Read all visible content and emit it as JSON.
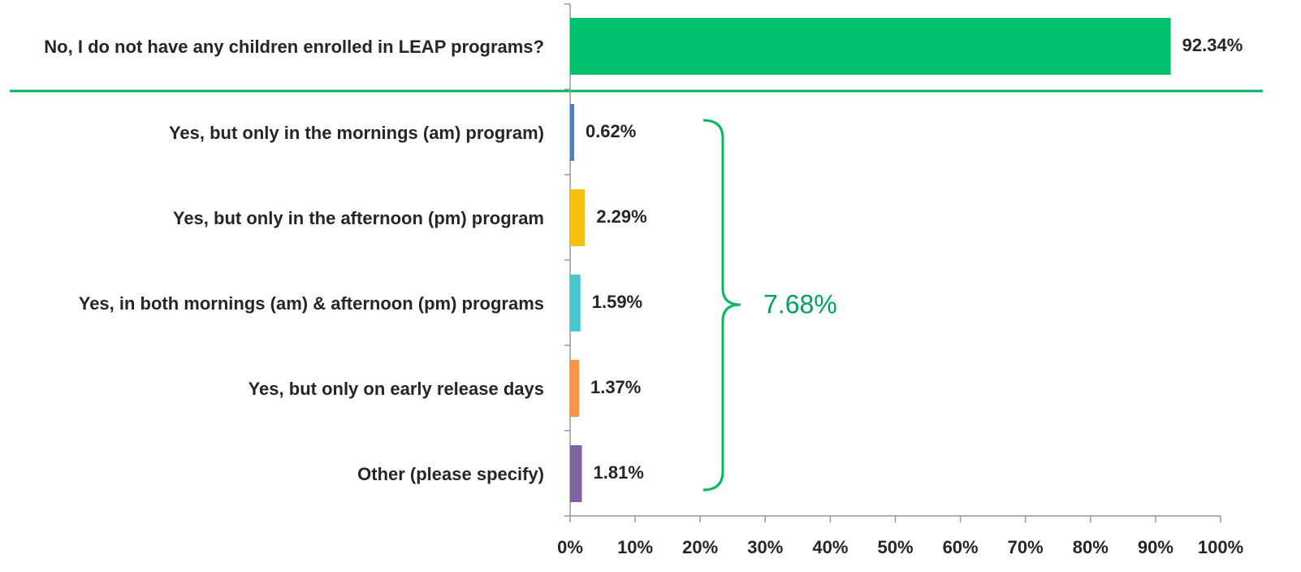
{
  "chart_data": {
    "type": "bar",
    "orientation": "horizontal",
    "categories": [
      "No, I do not have any children enrolled in LEAP programs?",
      "Yes, but only in the mornings (am) program)",
      "Yes, but only in the afternoon (pm) program",
      "Yes, in both mornings (am) & afternoon (pm) programs",
      "Yes, but only on early release days",
      "Other (please specify)"
    ],
    "values": [
      92.34,
      0.62,
      2.29,
      1.59,
      1.37,
      1.81
    ],
    "value_labels": [
      "92.34%",
      "0.62%",
      "2.29%",
      "1.59%",
      "1.37%",
      "1.81%"
    ],
    "colors": [
      "#00c16e",
      "#4f81bd",
      "#f5c010",
      "#4bc6d0",
      "#f79646",
      "#8064a2"
    ],
    "xlim": [
      0,
      100
    ],
    "xticks": [
      {
        "value": 0,
        "label": "0%"
      },
      {
        "value": 10,
        "label": "10%"
      },
      {
        "value": 20,
        "label": "20%"
      },
      {
        "value": 30,
        "label": "30%"
      },
      {
        "value": 40,
        "label": "40%"
      },
      {
        "value": 50,
        "label": "50%"
      },
      {
        "value": 60,
        "label": "60%"
      },
      {
        "value": 70,
        "label": "70%"
      },
      {
        "value": 80,
        "label": "80%"
      },
      {
        "value": 90,
        "label": "90%"
      },
      {
        "value": 100,
        "label": "100%"
      }
    ],
    "annotations": [
      "7.68%"
    ]
  }
}
